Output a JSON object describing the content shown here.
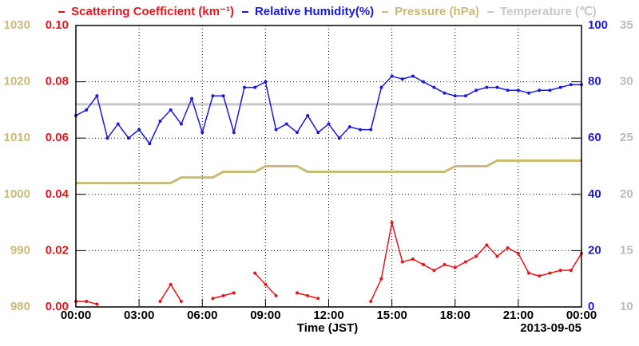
{
  "chart_data": {
    "type": "line",
    "x": [
      0,
      0.5,
      1,
      1.5,
      2,
      2.5,
      3,
      3.5,
      4,
      4.5,
      5,
      5.5,
      6,
      6.5,
      7,
      7.5,
      8,
      8.5,
      9,
      9.5,
      10,
      10.5,
      11,
      11.5,
      12,
      12.5,
      13,
      13.5,
      14,
      14.5,
      15,
      15.5,
      16,
      16.5,
      17,
      17.5,
      18,
      18.5,
      19,
      19.5,
      20,
      20.5,
      21,
      21.5,
      22,
      22.5,
      23,
      23.5,
      24
    ],
    "xlim": [
      0,
      24
    ],
    "xticks": [
      {
        "value": 0,
        "label": "00:00"
      },
      {
        "value": 3,
        "label": "03:00"
      },
      {
        "value": 6,
        "label": "06:00"
      },
      {
        "value": 9,
        "label": "09:00"
      },
      {
        "value": 12,
        "label": "12:00"
      },
      {
        "value": 15,
        "label": "15:00"
      },
      {
        "value": 18,
        "label": "18:00"
      },
      {
        "value": 21,
        "label": "21:00"
      },
      {
        "value": 24,
        "label": "00:00"
      }
    ],
    "xlabel": "Time (JST)",
    "date": "2013-09-05",
    "grid": true,
    "ylim": [
      0,
      0.1
    ],
    "ycolor": "#e8141c",
    "yticks": [
      {
        "value": 0,
        "label": "0.00"
      },
      {
        "value": 0.02,
        "label": "0.02"
      },
      {
        "value": 0.04,
        "label": "0.04"
      },
      {
        "value": 0.06,
        "label": "0.06"
      },
      {
        "value": 0.08,
        "label": "0.08"
      },
      {
        "value": 0.1,
        "label": "0.10"
      }
    ],
    "y2lim": [
      0,
      100
    ],
    "y2color": "#1a1adc",
    "y2ticks": [
      0,
      20,
      40,
      60,
      80,
      100
    ],
    "y3lim": [
      980,
      1030
    ],
    "y3color": "#c8bb7a",
    "y3ticks": [
      980,
      990,
      1000,
      1010,
      1020,
      1030
    ],
    "y4lim": [
      10,
      35
    ],
    "y4color": "#bbbbbb",
    "y4ticks": [
      10,
      15,
      20,
      25,
      30,
      35
    ],
    "series": [
      {
        "name": "Scattering Coefficient (km⁻¹)",
        "color": "#e8141c",
        "axis": "y",
        "marker": true,
        "values": [
          0.002,
          0.002,
          0.001,
          null,
          null,
          null,
          null,
          null,
          0.002,
          0.008,
          0.002,
          null,
          null,
          0.003,
          0.004,
          0.005,
          null,
          0.012,
          0.008,
          0.004,
          null,
          0.005,
          0.004,
          0.003,
          null,
          null,
          null,
          null,
          0.002,
          0.01,
          0.03,
          0.016,
          0.017,
          0.015,
          0.013,
          0.015,
          0.014,
          0.016,
          0.018,
          0.022,
          0.018,
          0.021,
          0.019,
          0.012,
          0.011,
          0.012,
          0.013,
          0.013,
          0.019
        ]
      },
      {
        "name": "Relative Humidity(%)",
        "color": "#1a1adc",
        "axis": "y2",
        "marker": true,
        "values": [
          68,
          70,
          75,
          60,
          65,
          60,
          63,
          58,
          66,
          70,
          65,
          74,
          62,
          75,
          75,
          62,
          78,
          78,
          80,
          63,
          65,
          62,
          68,
          62,
          65,
          60,
          64,
          63,
          63,
          78,
          82,
          81,
          82,
          80,
          78,
          76,
          75,
          75,
          77,
          78,
          78,
          77,
          77,
          76,
          77,
          77,
          78,
          79,
          79
        ]
      },
      {
        "name": "Pressure (hPa)",
        "color": "#c8bb7a",
        "axis": "y3",
        "marker": false,
        "values": [
          1002,
          1002,
          1002,
          1002,
          1002,
          1002,
          1002,
          1002,
          1002,
          1002,
          1003,
          1003,
          1003,
          1003,
          1004,
          1004,
          1004,
          1004,
          1005,
          1005,
          1005,
          1005,
          1004,
          1004,
          1004,
          1004,
          1004,
          1004,
          1004,
          1004,
          1004,
          1004,
          1004,
          1004,
          1004,
          1004,
          1005,
          1005,
          1005,
          1005,
          1006,
          1006,
          1006,
          1006,
          1006,
          1006,
          1006,
          1006,
          1006
        ]
      },
      {
        "name": "Temperature (℃)",
        "color": "#c8c8c8",
        "axis": "y4",
        "marker": false,
        "values": [
          28,
          28,
          28,
          28,
          28,
          28,
          28,
          28,
          28,
          28,
          28,
          28,
          28,
          28,
          28,
          28,
          28,
          28,
          28,
          28,
          28,
          28,
          28,
          28,
          28,
          28,
          28,
          28,
          28,
          28,
          28,
          28,
          28,
          28,
          28,
          28,
          28,
          28,
          28,
          28,
          28,
          28,
          28,
          28,
          28,
          28,
          28,
          28,
          28
        ]
      }
    ]
  }
}
